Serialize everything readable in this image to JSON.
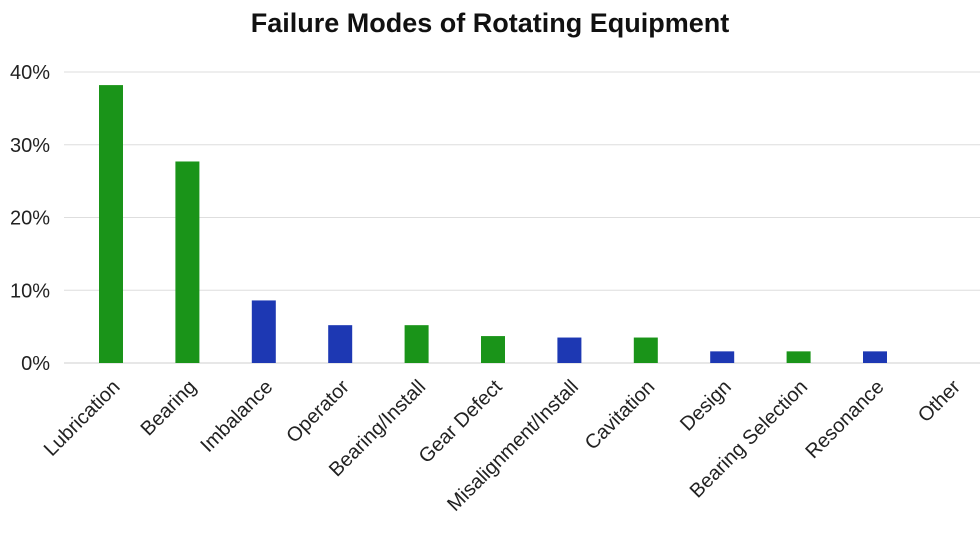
{
  "chart_data": {
    "type": "bar",
    "title": "Failure Modes of Rotating Equipment",
    "xlabel": "",
    "ylabel": "",
    "categories": [
      "Lubrication",
      "Bearing",
      "Imbalance",
      "Operator",
      "Bearing/Install",
      "Gear Defect",
      "Misalignment/Install",
      "Cavitation",
      "Design",
      "Bearing Selection",
      "Resonance",
      "Other"
    ],
    "values": [
      38.2,
      27.7,
      8.6,
      5.2,
      5.2,
      3.7,
      3.5,
      3.5,
      1.6,
      1.6,
      1.6,
      0
    ],
    "bar_colors": [
      "#1a9419",
      "#1a9419",
      "#1d38b3",
      "#1d38b3",
      "#1a9419",
      "#1a9419",
      "#1d38b3",
      "#1a9419",
      "#1d38b3",
      "#1a9419",
      "#1d38b3",
      "#1a9419"
    ],
    "y_ticks": [
      "0%",
      "10%",
      "20%",
      "30%",
      "40%"
    ],
    "y_tick_values": [
      0,
      10,
      20,
      30,
      40
    ],
    "ylim": [
      0,
      40
    ],
    "grid": true,
    "legend": "none"
  }
}
